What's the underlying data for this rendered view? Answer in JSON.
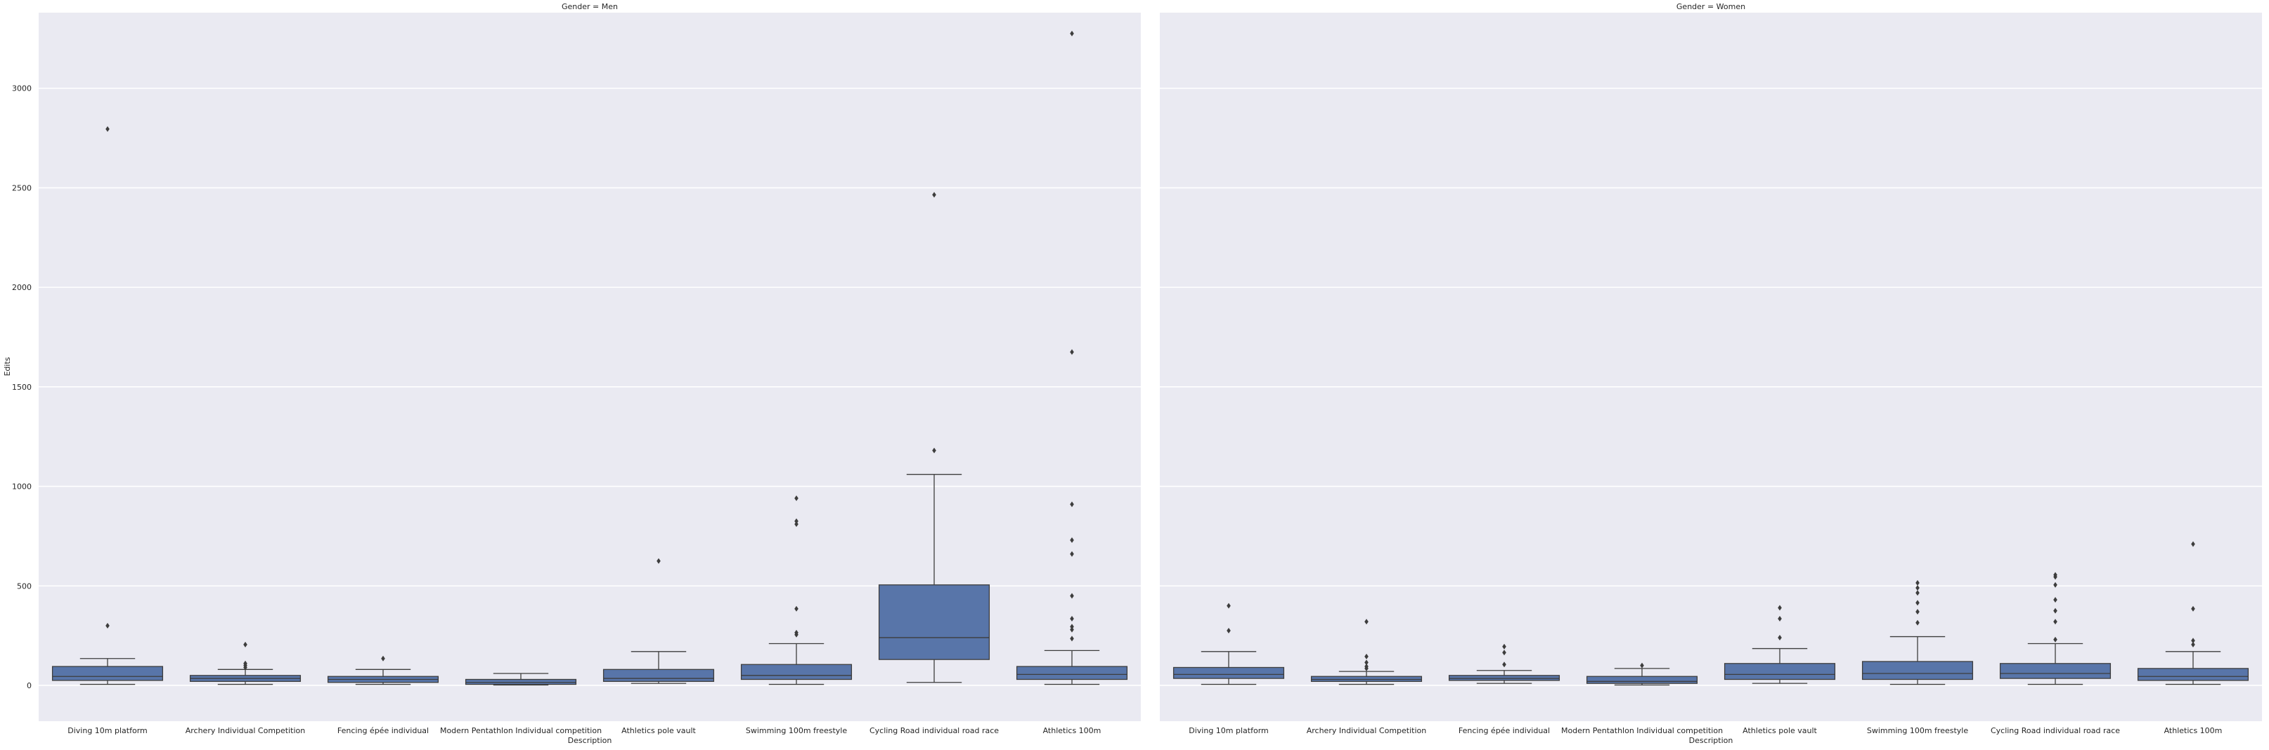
{
  "chart_data": {
    "type": "box",
    "y_label": "Edits",
    "x_label": "Description",
    "ylim": [
      -180,
      3380
    ],
    "yticks": [
      0,
      500,
      1000,
      1500,
      2000,
      2500,
      3000
    ],
    "grid": true,
    "box_color": "#5875a9",
    "panel_color": "#eaeaf2",
    "categories": [
      "Diving 10m platform",
      "Archery Individual Competition",
      "Fencing épée individual",
      "Modern Pentathlon Individual competition",
      "Athletics pole vault",
      "Swimming 100m freestyle",
      "Cycling Road individual road race",
      "Athletics 100m"
    ],
    "panels": [
      {
        "title": "Gender = Men",
        "boxes": [
          {
            "whislo": 5,
            "q1": 25,
            "med": 45,
            "q3": 95,
            "whishi": 135,
            "fliers": [
              300,
              2795
            ]
          },
          {
            "whislo": 5,
            "q1": 20,
            "med": 35,
            "q3": 50,
            "whishi": 80,
            "fliers": [
              90,
              100,
              110,
              205
            ]
          },
          {
            "whislo": 5,
            "q1": 15,
            "med": 30,
            "q3": 45,
            "whishi": 80,
            "fliers": [
              135
            ]
          },
          {
            "whislo": 2,
            "q1": 5,
            "med": 15,
            "q3": 30,
            "whishi": 60,
            "fliers": []
          },
          {
            "whislo": 10,
            "q1": 20,
            "med": 35,
            "q3": 80,
            "whishi": 170,
            "fliers": [
              625
            ]
          },
          {
            "whislo": 5,
            "q1": 30,
            "med": 50,
            "q3": 105,
            "whishi": 210,
            "fliers": [
              255,
              265,
              385,
              810,
              825,
              940
            ]
          },
          {
            "whislo": 15,
            "q1": 130,
            "med": 240,
            "q3": 505,
            "whishi": 1060,
            "fliers": [
              1180,
              2465
            ]
          },
          {
            "whislo": 5,
            "q1": 30,
            "med": 55,
            "q3": 95,
            "whishi": 175,
            "fliers": [
              235,
              280,
              295,
              335,
              450,
              660,
              730,
              910,
              1675,
              3275
            ]
          }
        ]
      },
      {
        "title": "Gender = Women",
        "boxes": [
          {
            "whislo": 5,
            "q1": 35,
            "med": 55,
            "q3": 90,
            "whishi": 170,
            "fliers": [
              275,
              400
            ]
          },
          {
            "whislo": 5,
            "q1": 20,
            "med": 30,
            "q3": 45,
            "whishi": 70,
            "fliers": [
              85,
              95,
              115,
              145,
              320
            ]
          },
          {
            "whislo": 10,
            "q1": 25,
            "med": 35,
            "q3": 50,
            "whishi": 75,
            "fliers": [
              105,
              165,
              195
            ]
          },
          {
            "whislo": 2,
            "q1": 10,
            "med": 20,
            "q3": 45,
            "whishi": 85,
            "fliers": [
              100
            ]
          },
          {
            "whislo": 10,
            "q1": 30,
            "med": 55,
            "q3": 110,
            "whishi": 185,
            "fliers": [
              240,
              335,
              390
            ]
          },
          {
            "whislo": 5,
            "q1": 30,
            "med": 60,
            "q3": 120,
            "whishi": 245,
            "fliers": [
              315,
              370,
              415,
              465,
              490,
              515
            ]
          },
          {
            "whislo": 5,
            "q1": 35,
            "med": 60,
            "q3": 110,
            "whishi": 210,
            "fliers": [
              230,
              320,
              375,
              430,
              505,
              545,
              555
            ]
          },
          {
            "whislo": 5,
            "q1": 25,
            "med": 45,
            "q3": 85,
            "whishi": 170,
            "fliers": [
              205,
              225,
              385,
              710
            ]
          }
        ]
      }
    ]
  }
}
